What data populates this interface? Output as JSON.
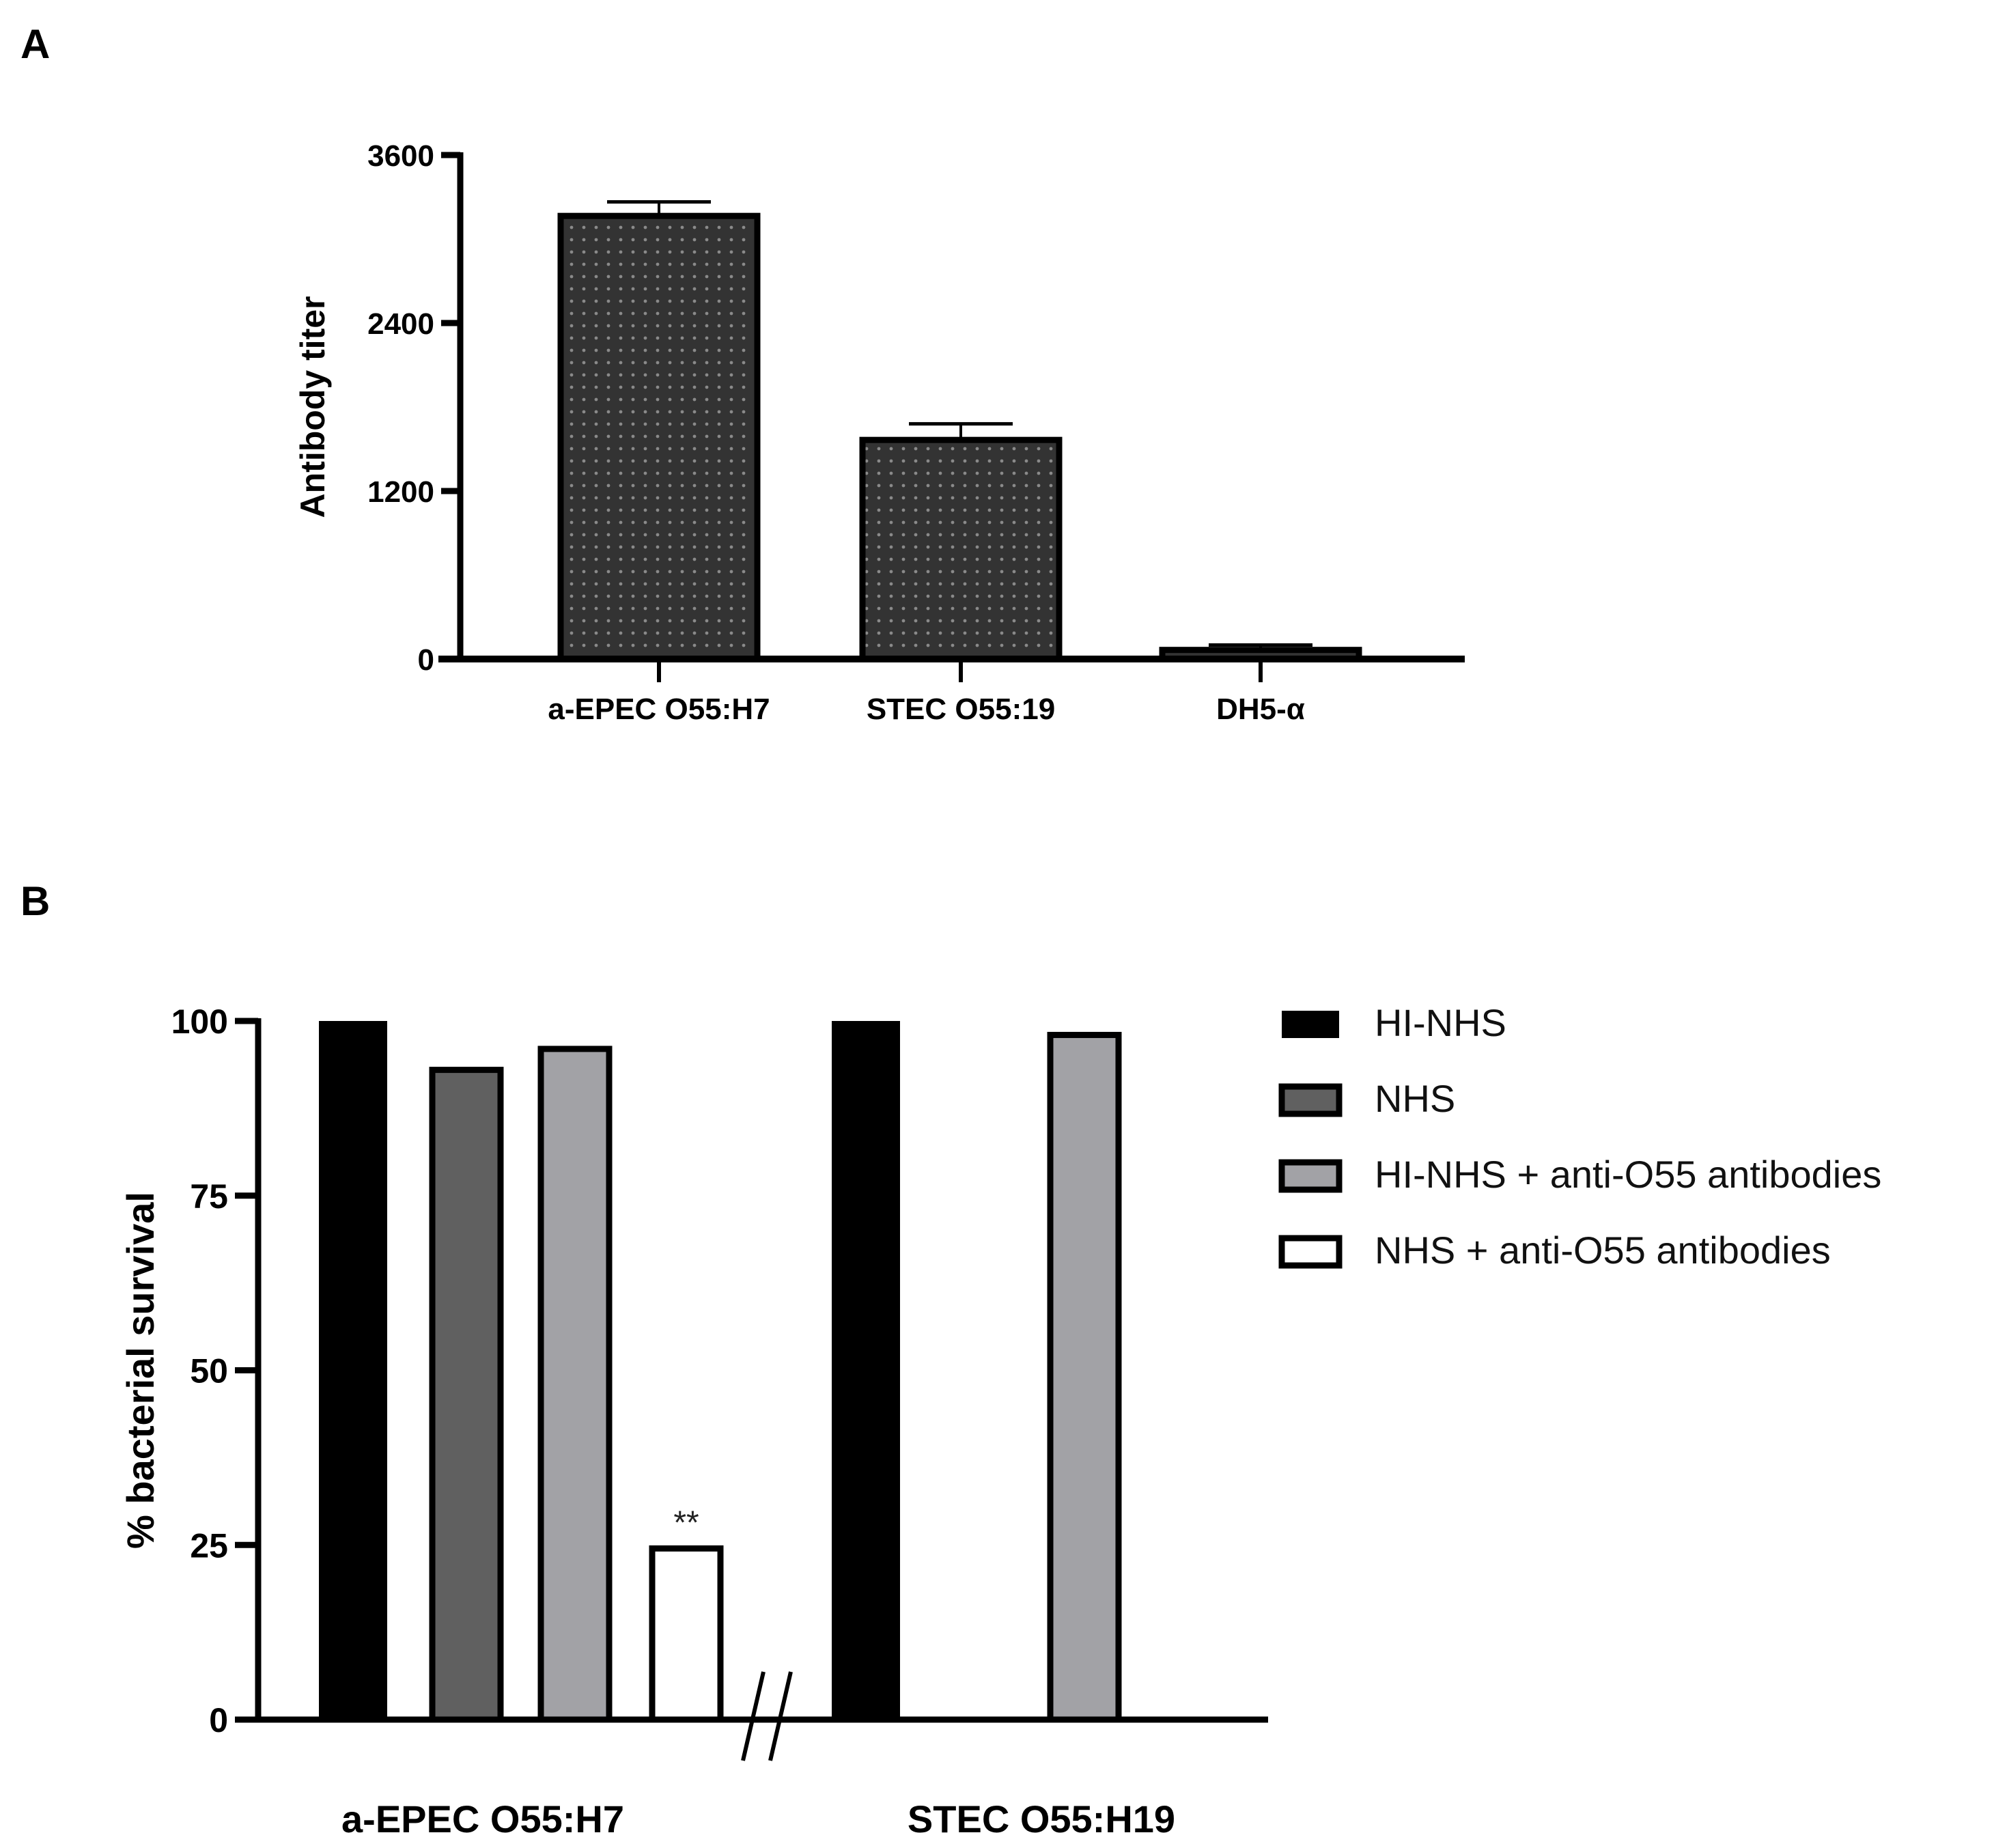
{
  "panels": {
    "a": {
      "label": "A"
    },
    "b": {
      "label": "B"
    }
  },
  "chart_data": [
    {
      "type": "bar",
      "panel": "A",
      "title": "",
      "xlabel": "",
      "ylabel": "Antibody titer",
      "ylim": [
        0,
        3600
      ],
      "yticks": [
        0,
        1200,
        2400,
        3600
      ],
      "ytick_labels": [
        "0",
        "1200",
        "2400",
        "3600"
      ],
      "categories": [
        "a-EPEC O55:H7",
        "STEC O55:19",
        "DH5-α"
      ],
      "values": [
        3165,
        1565,
        65
      ],
      "error_upper": [
        3265,
        1680,
        100
      ],
      "fill": "#333333",
      "pattern": "dotted",
      "grid": false,
      "legend": null
    },
    {
      "type": "bar",
      "panel": "B",
      "title": "",
      "xlabel": "",
      "ylabel": "% bacterial survival",
      "ylim": [
        0,
        100
      ],
      "yticks": [
        0,
        25,
        50,
        75,
        100
      ],
      "ytick_labels": [
        "0",
        "25",
        "50",
        "75",
        "100"
      ],
      "categories": [
        "a-EPEC O55:H7",
        "STEC O55:H19"
      ],
      "axis_break": true,
      "series": [
        {
          "name": "HI-NHS",
          "color": "#000000",
          "values": [
            100,
            100
          ]
        },
        {
          "name": "NHS",
          "color": "#606060",
          "values": [
            93,
            null
          ]
        },
        {
          "name": "HI-NHS + anti-O55 antibodies",
          "color": "#a2a2a6",
          "values": [
            96,
            98
          ]
        },
        {
          "name": "NHS + anti-O55 antibodies",
          "color": "#ffffff",
          "values": [
            24.5,
            null
          ]
        }
      ],
      "annotations": [
        {
          "text": "**",
          "category": "a-EPEC O55:H7",
          "series": "NHS + anti-O55 antibodies"
        }
      ],
      "legend_position": "right",
      "grid": false
    }
  ]
}
